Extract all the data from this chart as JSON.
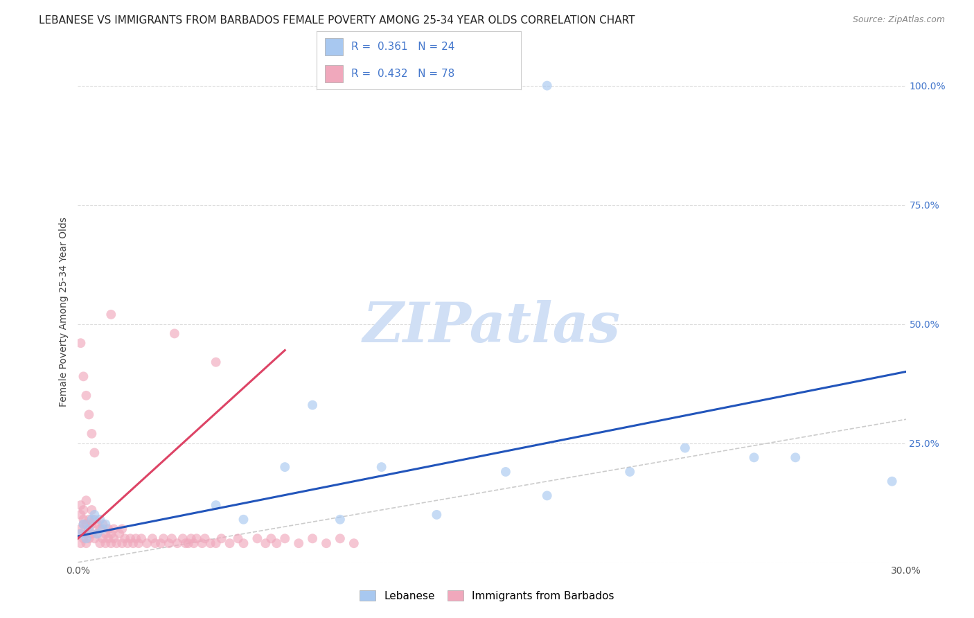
{
  "title": "LEBANESE VS IMMIGRANTS FROM BARBADOS FEMALE POVERTY AMONG 25-34 YEAR OLDS CORRELATION CHART",
  "source": "Source: ZipAtlas.com",
  "ylabel": "Female Poverty Among 25-34 Year Olds",
  "xlim": [
    0.0,
    0.3
  ],
  "ylim": [
    0.0,
    1.05
  ],
  "legend_label1": "Lebanese",
  "legend_label2": "Immigrants from Barbados",
  "blue_color": "#a8c8f0",
  "pink_color": "#f0a8bc",
  "blue_line_color": "#2255bb",
  "pink_line_color": "#dd4466",
  "diag_color": "#cccccc",
  "watermark": "ZIPatlas",
  "watermark_color": "#d0dff5",
  "grid_color": "#dddddd",
  "blue_scatter_x": [
    0.001,
    0.002,
    0.003,
    0.004,
    0.005,
    0.006,
    0.007,
    0.008,
    0.009,
    0.01,
    0.05,
    0.06,
    0.075,
    0.085,
    0.095,
    0.11,
    0.13,
    0.155,
    0.17,
    0.2,
    0.22,
    0.245,
    0.26,
    0.295
  ],
  "blue_scatter_y": [
    0.06,
    0.08,
    0.05,
    0.07,
    0.09,
    0.1,
    0.06,
    0.09,
    0.07,
    0.08,
    0.12,
    0.09,
    0.2,
    0.33,
    0.09,
    0.2,
    0.1,
    0.19,
    0.14,
    0.19,
    0.24,
    0.22,
    0.22,
    0.17
  ],
  "blue_outlier_x": [
    0.17
  ],
  "blue_outlier_y": [
    1.0
  ],
  "pink_scatter_x": [
    0.001,
    0.001,
    0.001,
    0.001,
    0.001,
    0.002,
    0.002,
    0.002,
    0.002,
    0.003,
    0.003,
    0.003,
    0.003,
    0.004,
    0.004,
    0.004,
    0.005,
    0.005,
    0.005,
    0.006,
    0.006,
    0.007,
    0.007,
    0.008,
    0.008,
    0.009,
    0.009,
    0.01,
    0.01,
    0.011,
    0.011,
    0.012,
    0.012,
    0.013,
    0.013,
    0.014,
    0.015,
    0.016,
    0.016,
    0.017,
    0.018,
    0.019,
    0.02,
    0.021,
    0.022,
    0.023,
    0.025,
    0.027,
    0.028,
    0.03,
    0.031,
    0.033,
    0.034,
    0.036,
    0.038,
    0.039,
    0.04,
    0.041,
    0.042,
    0.043,
    0.045,
    0.046,
    0.048,
    0.05,
    0.052,
    0.055,
    0.058,
    0.06,
    0.065,
    0.068,
    0.07,
    0.072,
    0.075,
    0.08,
    0.085,
    0.09,
    0.095,
    0.1
  ],
  "pink_scatter_y": [
    0.04,
    0.06,
    0.07,
    0.1,
    0.12,
    0.05,
    0.08,
    0.09,
    0.11,
    0.04,
    0.06,
    0.08,
    0.13,
    0.05,
    0.07,
    0.09,
    0.06,
    0.08,
    0.11,
    0.05,
    0.09,
    0.06,
    0.08,
    0.04,
    0.07,
    0.05,
    0.08,
    0.04,
    0.06,
    0.05,
    0.07,
    0.04,
    0.06,
    0.05,
    0.07,
    0.04,
    0.06,
    0.04,
    0.07,
    0.05,
    0.04,
    0.05,
    0.04,
    0.05,
    0.04,
    0.05,
    0.04,
    0.05,
    0.04,
    0.04,
    0.05,
    0.04,
    0.05,
    0.04,
    0.05,
    0.04,
    0.04,
    0.05,
    0.04,
    0.05,
    0.04,
    0.05,
    0.04,
    0.04,
    0.05,
    0.04,
    0.05,
    0.04,
    0.05,
    0.04,
    0.05,
    0.04,
    0.05,
    0.04,
    0.05,
    0.04,
    0.05,
    0.04
  ],
  "pink_outlier_x": [
    0.001,
    0.002,
    0.003,
    0.004,
    0.005,
    0.006,
    0.012,
    0.035,
    0.05
  ],
  "pink_outlier_y": [
    0.46,
    0.39,
    0.35,
    0.31,
    0.27,
    0.23,
    0.52,
    0.48,
    0.42
  ],
  "blue_line_x0": 0.0,
  "blue_line_y0": 0.055,
  "blue_line_x1": 0.3,
  "blue_line_y1": 0.4,
  "pink_line_x0": 0.0,
  "pink_line_y0": 0.05,
  "pink_line_x1": 0.075,
  "pink_line_y1": 0.445,
  "xtick_positions": [
    0.0,
    0.05,
    0.1,
    0.15,
    0.2,
    0.25,
    0.3
  ],
  "xtick_labels": [
    "0.0%",
    "",
    "",
    "",
    "",
    "",
    "30.0%"
  ],
  "ytick_right_positions": [
    0.0,
    0.25,
    0.5,
    0.75,
    1.0
  ],
  "ytick_right_labels": [
    "",
    "25.0%",
    "50.0%",
    "75.0%",
    "100.0%"
  ],
  "title_fontsize": 11,
  "source_fontsize": 9,
  "axis_label_fontsize": 10,
  "tick_fontsize": 10,
  "right_tick_color": "#4477cc",
  "scatter_size": 100,
  "scatter_alpha": 0.65
}
